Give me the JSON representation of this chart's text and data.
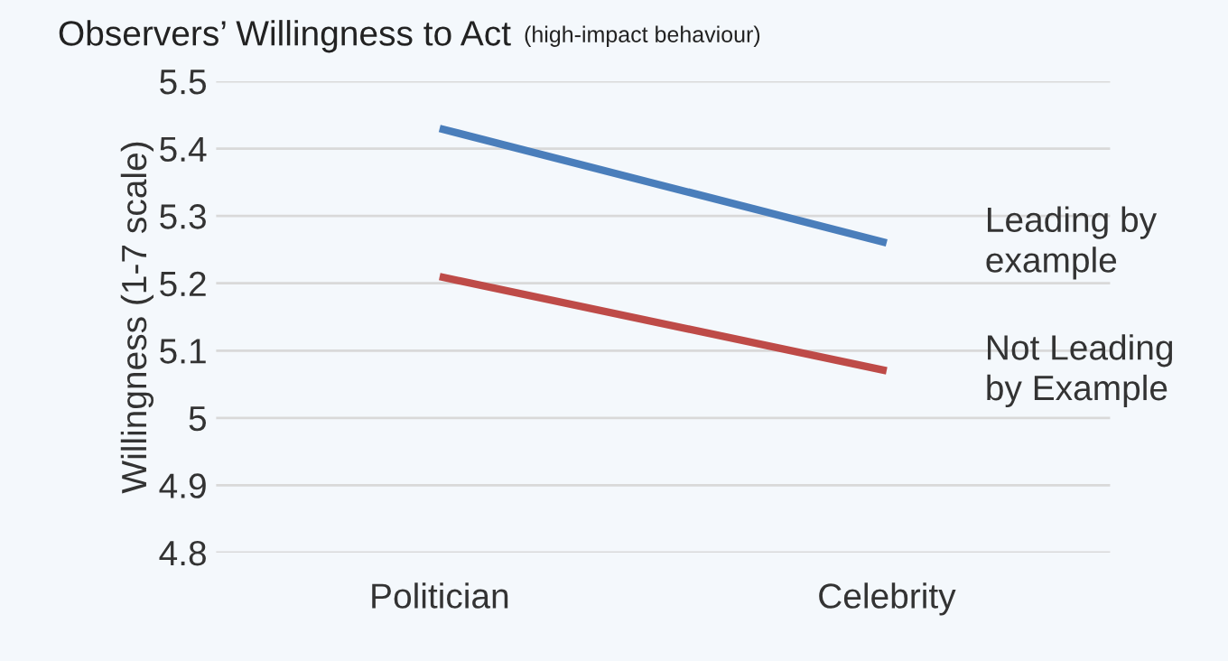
{
  "chart_data": {
    "type": "line",
    "title": "Observers’ Willingness to Act",
    "subtitle": "(high-impact behaviour)",
    "ylabel": "Willingness (1-7 scale)",
    "categories": [
      "Politician",
      "Celebrity"
    ],
    "series": [
      {
        "name": "Leading by\nexample",
        "color": "#4a7ebb",
        "values": [
          5.43,
          5.26
        ]
      },
      {
        "name": "Not Leading\nby Example",
        "color": "#be4b48",
        "values": [
          5.21,
          5.07
        ]
      }
    ],
    "ylim": [
      4.8,
      5.5
    ],
    "yticks": [
      4.8,
      4.9,
      5,
      5.1,
      5.2,
      5.3,
      5.4,
      5.5
    ],
    "grid": "y",
    "legend": false,
    "marker": "none",
    "line_style": "solid"
  }
}
